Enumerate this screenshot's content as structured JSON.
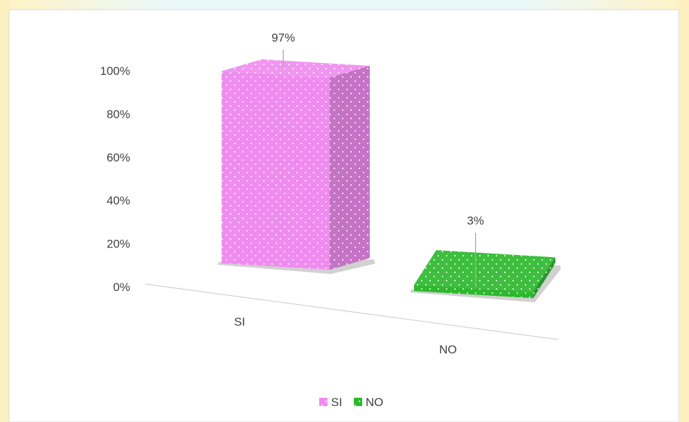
{
  "chart_data": {
    "type": "bar",
    "style": "3d-column",
    "categories": [
      "SI",
      "NO"
    ],
    "series": [
      {
        "name": "SI",
        "values": [
          97,
          null
        ]
      },
      {
        "name": "NO",
        "values": [
          null,
          3
        ]
      }
    ],
    "values": [
      97,
      3
    ],
    "data_labels": [
      "97%",
      "3%"
    ],
    "y_ticks": [
      "0%",
      "20%",
      "40%",
      "60%",
      "80%",
      "100%"
    ],
    "ylim": [
      0,
      100
    ],
    "grid": false,
    "legend": {
      "position": "bottom",
      "entries": [
        "SI",
        "NO"
      ]
    },
    "colors": {
      "SI": "#f08cf0",
      "NO": "#2db82d"
    }
  }
}
